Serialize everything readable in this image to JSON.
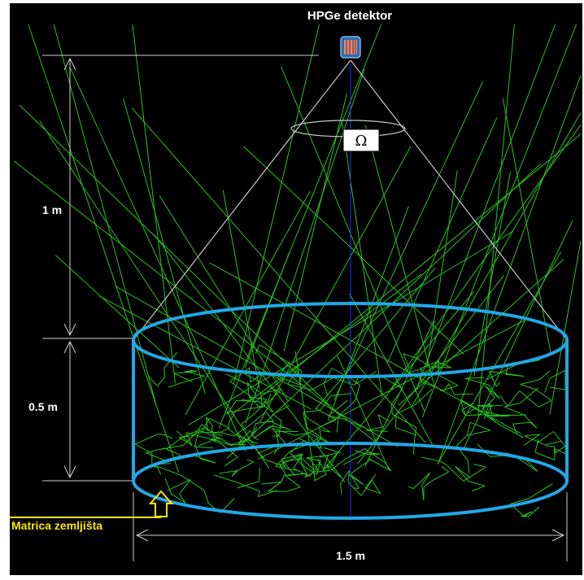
{
  "labels": {
    "detector": "HPGe detektor",
    "solid_angle": "Ω",
    "height_air": "1 m",
    "height_soil": "0.5 m",
    "diameter": "1.5 m",
    "soil_matrix": "Matrica zemljišta"
  },
  "colors": {
    "background": "#000000",
    "cylinder": "#22a8e6",
    "tracks": "#29c41f",
    "dimension_lines": "#d0d0d0",
    "soil_label": "#ffe600",
    "axis": "#2233ff"
  },
  "icons": {
    "detector": "detector-crystal-icon",
    "arrow": "up-arrow-icon"
  }
}
